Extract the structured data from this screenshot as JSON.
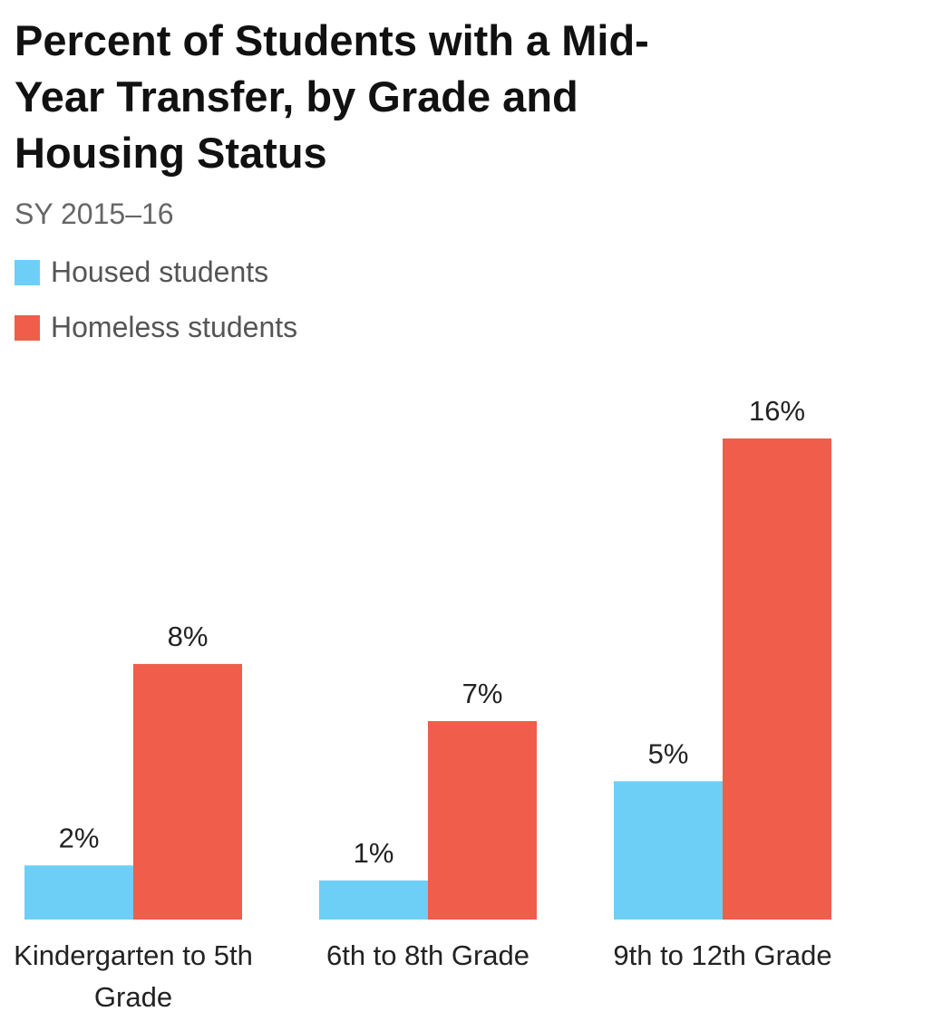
{
  "chart_data": {
    "type": "bar",
    "title": "Percent of Students with a Mid-Year Transfer, by Grade and Housing Status",
    "subtitle": "SY 2015–16",
    "categories": [
      "Kindergarten to 5th Grade",
      "6th to 8th Grade",
      "9th to 12th Grade"
    ],
    "series": [
      {
        "name": "Housed students",
        "color": "#6dcff6",
        "values": [
          1.8,
          1.3,
          4.6
        ],
        "value_labels": [
          "2%",
          "1%",
          "5%"
        ]
      },
      {
        "name": "Homeless students",
        "color": "#f05d4b",
        "values": [
          8.5,
          6.6,
          16
        ],
        "value_labels": [
          "8%",
          "7%",
          "16%"
        ]
      }
    ]
  }
}
